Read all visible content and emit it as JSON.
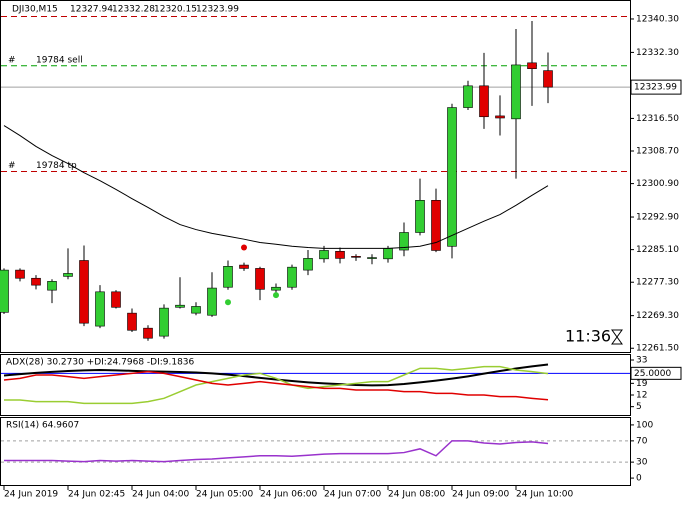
{
  "chart_data": {
    "type": "candlestick",
    "title": "DJI30,M15",
    "categories": [
      "24 Jun 2019",
      null,
      null,
      null,
      "24 Jun 02:45",
      null,
      null,
      null,
      "24 Jun 04:00",
      null,
      null,
      null,
      "24 Jun 05:00",
      null,
      null,
      null,
      "24 Jun 06:00",
      null,
      null,
      null,
      "24 Jun 07:00",
      null,
      null,
      null,
      "24 Jun 08:00",
      null,
      null,
      null,
      "24 Jun 09:00",
      null,
      null,
      null,
      "24 Jun 10:00",
      null,
      null
    ],
    "ohlc": {
      "open": [
        12270.1,
        12280.2,
        12278.25,
        12275.4,
        12278.7,
        12282.5,
        12266.8,
        12275.0,
        12269.9,
        12266.3,
        12264.4,
        12271.3,
        12269.9,
        12269.4,
        12276.1,
        12281.4,
        12280.6,
        12275.4,
        12276.1,
        12280.2,
        12282.9,
        12284.7,
        12283.5,
        12283.1,
        12282.9,
        12285.0,
        12289.2,
        12296.9,
        12285.9,
        12319.1,
        12324.3,
        12317.1,
        12316.4,
        12329.8,
        12327.94
      ],
      "high": [
        12280.6,
        12280.6,
        12279.0,
        12278.0,
        12285.4,
        12286.1,
        12276.6,
        12275.4,
        12271.0,
        12267.0,
        12272.0,
        12278.5,
        12272.5,
        12279.7,
        12282.5,
        12282.0,
        12281.0,
        12277.0,
        12281.5,
        12285.0,
        12286.0,
        12285.6,
        12284.0,
        12284.0,
        12286.0,
        12291.6,
        12302.1,
        12299.7,
        12320.0,
        12325.5,
        12332.2,
        12322.0,
        12337.9,
        12339.8,
        12332.28
      ],
      "low": [
        12269.7,
        12277.5,
        12275.6,
        12272.3,
        12278.0,
        12266.8,
        12266.3,
        12271.0,
        12265.4,
        12263.3,
        12263.8,
        12271.0,
        12269.4,
        12269.0,
        12275.5,
        12280.0,
        12273.0,
        12274.0,
        12275.5,
        12279.0,
        12282.0,
        12281.8,
        12282.4,
        12281.6,
        12282.0,
        12283.5,
        12288.5,
        12284.5,
        12283.0,
        12318.5,
        12314.0,
        12312.4,
        12302.1,
        12319.5,
        12320.15
      ],
      "close": [
        12280.2,
        12278.25,
        12276.6,
        12277.5,
        12279.4,
        12267.5,
        12275.0,
        12271.3,
        12265.8,
        12263.9,
        12271.1,
        12271.8,
        12271.5,
        12275.9,
        12281.1,
        12280.6,
        12275.6,
        12276.1,
        12280.9,
        12283.0,
        12284.9,
        12283.0,
        12283.4,
        12283.2,
        12285.4,
        12289.2,
        12296.9,
        12284.9,
        12319.1,
        12324.3,
        12316.9,
        12316.6,
        12329.3,
        12328.4,
        12323.99
      ]
    },
    "up_color": "#32cd32",
    "down_color": "#e00000",
    "ylim": [
      12260.6,
      12344.6
    ],
    "yticks": [
      {
        "value": 12340.3,
        "label": "12340.30"
      },
      {
        "value": 12332.3,
        "label": "12332.30"
      },
      {
        "value": 12316.5,
        "label": "12316.50"
      },
      {
        "value": 12308.7,
        "label": "12308.70"
      },
      {
        "value": 12300.9,
        "label": "12300.90"
      },
      {
        "value": 12292.9,
        "label": "12292.90"
      },
      {
        "value": 12285.1,
        "label": "12285.10"
      },
      {
        "value": 12277.3,
        "label": "12277.30"
      },
      {
        "value": 12269.3,
        "label": "12269.30"
      },
      {
        "value": 12261.5,
        "label": "12261.50"
      }
    ],
    "ma": {
      "color": "#000000",
      "values": [
        12314.8,
        12312.4,
        12309.8,
        12307.6,
        12305.7,
        12303.5,
        12301.6,
        12299.5,
        12297.3,
        12295.2,
        12293.0,
        12291.1,
        12289.9,
        12289.0,
        12288.3,
        12287.6,
        12286.8,
        12286.4,
        12285.9,
        12285.6,
        12285.4,
        12285.4,
        12285.4,
        12285.4,
        12285.4,
        12285.6,
        12285.9,
        12286.8,
        12288.5,
        12290.2,
        12291.9,
        12293.5,
        12295.7,
        12298.1,
        12300.4
      ]
    },
    "fractals": [
      {
        "index": 15,
        "price": 12285.6,
        "color": "#e00000"
      },
      {
        "index": 14,
        "price": 12272.5,
        "color": "#32cd32"
      },
      {
        "index": 17,
        "price": 12274.2,
        "color": "#32cd32"
      }
    ],
    "levels": [
      {
        "price": 12340.9,
        "color": "#c00000"
      },
      {
        "prefix": "#",
        "label": "19784 sell",
        "price": 12329.1,
        "color": "#00a000"
      },
      {
        "prefix": "#",
        "label": "19784 tp",
        "price": 12303.8,
        "color": "#c00000"
      }
    ],
    "time_to_close": "11:36",
    "indicators": [
      {
        "type": "line",
        "title": "ADX(28) 30.2730 +DI:24.7968 -DI:9.1836",
        "ylim": [
          0,
          36
        ],
        "yticks": [
          33,
          26,
          19,
          12,
          5
        ],
        "levels": [
          {
            "value": 25,
            "label": "25.0000"
          }
        ],
        "level_color": "#0000ff",
        "series": [
          {
            "color": "#000000",
            "values": [
              23.7,
              24.5,
              25.3,
              25.9,
              26.4,
              26.8,
              27.0,
              26.8,
              26.5,
              26.2,
              26.0,
              25.8,
              25.5,
              25.0,
              24.2,
              23.3,
              22.3,
              21.3,
              20.4,
              19.6,
              19.0,
              18.5,
              18.0,
              17.8,
              17.9,
              18.6,
              19.6,
              20.6,
              21.8,
              23.2,
              24.8,
              26.4,
              27.9,
              29.2,
              30.273
            ]
          },
          {
            "color": "#9acd32",
            "values": [
              9,
              9,
              8,
              8,
              8,
              7,
              7,
              7,
              7,
              8,
              10,
              14,
              18,
              20,
              22,
              24,
              25,
              22,
              18,
              16,
              17,
              18,
              19,
              20,
              20,
              24,
              28,
              28,
              27,
              28,
              29,
              29,
              27,
              26,
              24.7968
            ]
          },
          {
            "color": "#e00000",
            "values": [
              21,
              22,
              24,
              24,
              23,
              22,
              23,
              24,
              25,
              26,
              25,
              23,
              21,
              19,
              18,
              19,
              20,
              19,
              18,
              17,
              16,
              16,
              15,
              15,
              15,
              14,
              14,
              13,
              13,
              12,
              12,
              11,
              11,
              10,
              9.1836
            ]
          }
        ]
      },
      {
        "type": "line",
        "title": "RSI(14) 64.9607",
        "ylim": [
          -13,
          113
        ],
        "yticks": [
          100,
          70,
          30,
          0
        ],
        "levels": [
          {
            "value": 70
          },
          {
            "value": 30
          }
        ],
        "level_color": "#a0a0a0",
        "series": [
          {
            "color": "#9932cc",
            "values": [
              33,
              33,
              33,
              33,
              32,
              31,
              33,
              32,
              33,
              32,
              31,
              33,
              35,
              36,
              38,
              40,
              42,
              42,
              41,
              43,
              45,
              46,
              46,
              46,
              46,
              48,
              55,
              42,
              70,
              70,
              66,
              64,
              67,
              68,
              64.9607
            ]
          }
        ]
      }
    ]
  }
}
